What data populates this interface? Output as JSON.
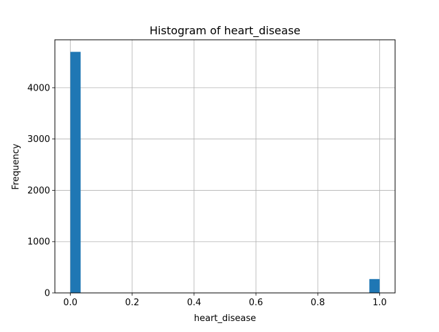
{
  "chart_data": {
    "type": "bar",
    "title": "Histogram of heart_disease",
    "xlabel": "heart_disease",
    "ylabel": "Frequency",
    "xlim": [
      -0.05,
      1.05
    ],
    "ylim": [
      0,
      4935
    ],
    "grid": true,
    "bar_color": "#1f77b4",
    "bins": [
      {
        "x0": 0.0,
        "x1": 0.0333,
        "count": 4700
      },
      {
        "x0": 0.9667,
        "x1": 1.0,
        "count": 270
      }
    ],
    "x_ticks": [
      {
        "value": 0.0,
        "label": "0.0"
      },
      {
        "value": 0.2,
        "label": "0.2"
      },
      {
        "value": 0.4,
        "label": "0.4"
      },
      {
        "value": 0.6,
        "label": "0.6"
      },
      {
        "value": 0.8,
        "label": "0.8"
      },
      {
        "value": 1.0,
        "label": "1.0"
      }
    ],
    "y_ticks": [
      {
        "value": 0,
        "label": "0"
      },
      {
        "value": 1000,
        "label": "1000"
      },
      {
        "value": 2000,
        "label": "2000"
      },
      {
        "value": 3000,
        "label": "3000"
      },
      {
        "value": 4000,
        "label": "4000"
      }
    ]
  }
}
